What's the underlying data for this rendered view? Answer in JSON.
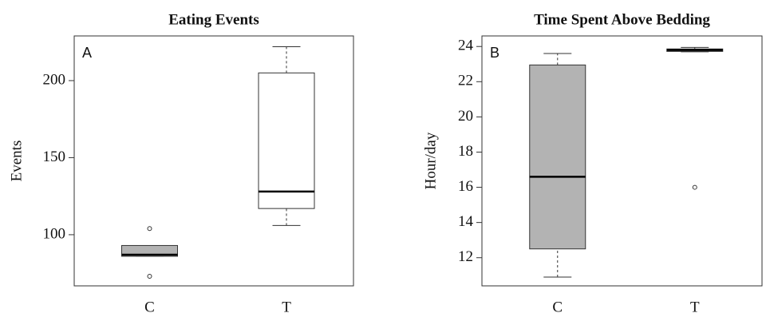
{
  "chart_data": [
    {
      "type": "box",
      "title": "Eating Events",
      "panel_label": "A",
      "ylabel": "Events",
      "categories": [
        "C",
        "T"
      ],
      "boxes": [
        {
          "whisker_low": 86,
          "q1": 86,
          "median": 87,
          "q3": 93,
          "whisker_high": 93,
          "outliers": [
            104,
            73
          ],
          "color": "#b3b3b3"
        },
        {
          "whisker_low": 106,
          "q1": 117,
          "median": 128,
          "q3": 205,
          "whisker_high": 222,
          "outliers": [],
          "color": "#ffffff"
        }
      ],
      "ylim": [
        66.8,
        229
      ],
      "yticks": [
        100,
        150,
        200
      ]
    },
    {
      "type": "box",
      "title": "Time Spent Above Bedding",
      "panel_label": "B",
      "ylabel": "Hour/day",
      "categories": [
        "C",
        "T"
      ],
      "boxes": [
        {
          "whisker_low": 10.9,
          "q1": 12.5,
          "median": 16.6,
          "q3": 22.95,
          "whisker_high": 23.6,
          "outliers": [],
          "color": "#b3b3b3"
        },
        {
          "whisker_low": 23.7,
          "q1": 23.72,
          "median": 23.8,
          "q3": 23.86,
          "whisker_high": 23.95,
          "outliers": [
            16
          ],
          "color": "#b3b3b3"
        }
      ],
      "ylim": [
        10.4,
        24.6
      ],
      "yticks": [
        12,
        14,
        16,
        18,
        20,
        22,
        24
      ]
    }
  ]
}
